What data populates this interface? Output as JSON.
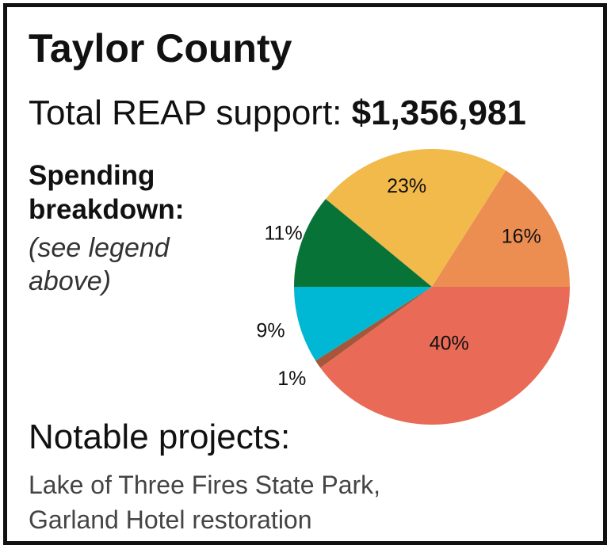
{
  "title": "Taylor County",
  "total": {
    "label": "Total REAP support:",
    "amount": "$1,356,981"
  },
  "breakdown": {
    "heading_line1": "Spending",
    "heading_line2": "breakdown:",
    "note_line1": "(see legend",
    "note_line2": "above)"
  },
  "chart_data": {
    "type": "pie",
    "slices": [
      {
        "label": "40%",
        "value": 40,
        "color": "#e96b57"
      },
      {
        "label": "1%",
        "value": 1,
        "color": "#a4573a"
      },
      {
        "label": "9%",
        "value": 9,
        "color": "#00b8d4"
      },
      {
        "label": "11%",
        "value": 11,
        "color": "#087337"
      },
      {
        "label": "23%",
        "value": 23,
        "color": "#f2b94b"
      },
      {
        "label": "16%",
        "value": 16,
        "color": "#ec8e52"
      }
    ]
  },
  "projects": {
    "heading": "Notable projects:",
    "line1": "Lake of Three Fires State Park,",
    "line2": "Garland Hotel restoration"
  }
}
